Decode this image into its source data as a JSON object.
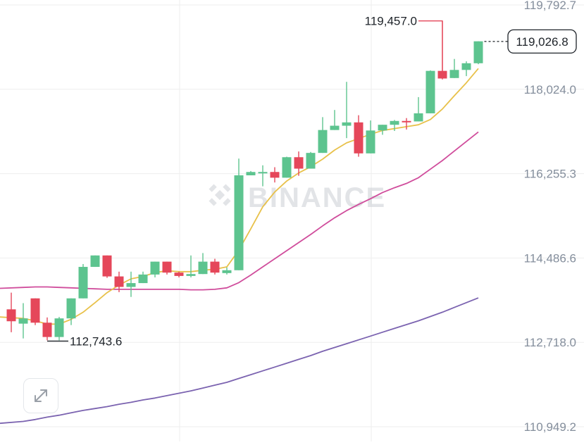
{
  "chart_data": {
    "type": "candlestick",
    "price_axis_labels": [
      "119,792.7",
      "118,024.0",
      "116,255.3",
      "114,486.6",
      "112,718.0",
      "110,949.2"
    ],
    "current_price_label": "119,026.8",
    "current_price": 119026.8,
    "high_label": "119,457.0",
    "high_value": 119457.0,
    "low_label": "112,743.6",
    "low_value": 112743.6,
    "ylim": [
      110949.2,
      119792.7
    ],
    "watermark": "BINANCE",
    "grid": true,
    "candles": [
      {
        "o": 113410,
        "h": 113760,
        "l": 112930,
        "c": 113160
      },
      {
        "o": 113110,
        "h": 113540,
        "l": 112800,
        "c": 113220
      },
      {
        "o": 113640,
        "h": 113640,
        "l": 113080,
        "c": 113130
      },
      {
        "o": 113130,
        "h": 113240,
        "l": 112760,
        "c": 112830
      },
      {
        "o": 112830,
        "h": 113250,
        "l": 112760,
        "c": 113220
      },
      {
        "o": 113220,
        "h": 113640,
        "l": 113080,
        "c": 113640
      },
      {
        "o": 113640,
        "h": 114360,
        "l": 113640,
        "c": 114300
      },
      {
        "o": 114300,
        "h": 114540,
        "l": 114300,
        "c": 114540
      },
      {
        "o": 114540,
        "h": 114540,
        "l": 114070,
        "c": 114100
      },
      {
        "o": 114100,
        "h": 114200,
        "l": 113770,
        "c": 113880
      },
      {
        "o": 113880,
        "h": 114200,
        "l": 113670,
        "c": 113960
      },
      {
        "o": 113960,
        "h": 114200,
        "l": 113960,
        "c": 114140
      },
      {
        "o": 114140,
        "h": 114410,
        "l": 114080,
        "c": 114410
      },
      {
        "o": 114410,
        "h": 114410,
        "l": 114140,
        "c": 114180
      },
      {
        "o": 114180,
        "h": 114200,
        "l": 114080,
        "c": 114110
      },
      {
        "o": 114110,
        "h": 114540,
        "l": 114080,
        "c": 114150
      },
      {
        "o": 114150,
        "h": 114590,
        "l": 114150,
        "c": 114410
      },
      {
        "o": 114410,
        "h": 114470,
        "l": 114140,
        "c": 114180
      },
      {
        "o": 114170,
        "h": 114290,
        "l": 114140,
        "c": 114230
      },
      {
        "o": 114230,
        "h": 116570,
        "l": 114230,
        "c": 116220
      },
      {
        "o": 116220,
        "h": 116310,
        "l": 116220,
        "c": 116290
      },
      {
        "o": 116290,
        "h": 116430,
        "l": 115990,
        "c": 116290
      },
      {
        "o": 116290,
        "h": 116390,
        "l": 116070,
        "c": 116170
      },
      {
        "o": 116170,
        "h": 116610,
        "l": 116170,
        "c": 116600
      },
      {
        "o": 116600,
        "h": 116720,
        "l": 116210,
        "c": 116360
      },
      {
        "o": 116360,
        "h": 116710,
        "l": 116360,
        "c": 116690
      },
      {
        "o": 116690,
        "h": 117440,
        "l": 116690,
        "c": 117170
      },
      {
        "o": 117170,
        "h": 117590,
        "l": 117170,
        "c": 117260
      },
      {
        "o": 117260,
        "h": 118180,
        "l": 117000,
        "c": 117330
      },
      {
        "o": 117330,
        "h": 117480,
        "l": 116610,
        "c": 116680
      },
      {
        "o": 116680,
        "h": 117370,
        "l": 116680,
        "c": 117160
      },
      {
        "o": 117160,
        "h": 117280,
        "l": 117070,
        "c": 117280
      },
      {
        "o": 117280,
        "h": 117380,
        "l": 117150,
        "c": 117360
      },
      {
        "o": 117360,
        "h": 117420,
        "l": 117180,
        "c": 117350
      },
      {
        "o": 117350,
        "h": 117860,
        "l": 117350,
        "c": 117520
      },
      {
        "o": 117520,
        "h": 118420,
        "l": 117520,
        "c": 118410
      },
      {
        "o": 118410,
        "h": 119450,
        "l": 118230,
        "c": 118250
      },
      {
        "o": 118260,
        "h": 118660,
        "l": 118260,
        "c": 118430
      },
      {
        "o": 118430,
        "h": 118610,
        "l": 118300,
        "c": 118570
      },
      {
        "o": 118570,
        "h": 119030,
        "l": 118550,
        "c": 119030
      }
    ],
    "ma_fast": [
      113250,
      113220,
      113170,
      113100,
      113100,
      113200,
      113350,
      113550,
      113760,
      113920,
      114050,
      114100,
      114180,
      114220,
      114200,
      114200,
      114230,
      114250,
      114300,
      114650,
      115100,
      115560,
      115870,
      116100,
      116270,
      116400,
      116560,
      116750,
      116900,
      116990,
      117080,
      117160,
      117200,
      117240,
      117280,
      117390,
      117610,
      117890,
      118160,
      118460
    ],
    "ma_mid": [
      113850,
      113870,
      113880,
      113880,
      113870,
      113860,
      113850,
      113840,
      113830,
      113830,
      113830,
      113830,
      113830,
      113830,
      113830,
      113820,
      113820,
      113830,
      113860,
      113970,
      114130,
      114300,
      114470,
      114640,
      114810,
      114980,
      115160,
      115330,
      115480,
      115610,
      115730,
      115860,
      115960,
      116050,
      116170,
      116350,
      116530,
      116730,
      116930,
      117130
    ],
    "ma_slow": [
      111020,
      111060,
      111100,
      111150,
      111190,
      111240,
      111290,
      111330,
      111370,
      111420,
      111460,
      111510,
      111550,
      111600,
      111650,
      111700,
      111760,
      111820,
      111880,
      111960,
      112040,
      112120,
      112200,
      112280,
      112360,
      112440,
      112530,
      112610,
      112690,
      112770,
      112850,
      112930,
      113010,
      113090,
      113170,
      113260,
      113350,
      113450,
      113550,
      113650
    ],
    "colors": {
      "up": "#5dc48f",
      "down": "#e5475a",
      "ma_fast": "#e8c14a",
      "ma_mid": "#d04d9c",
      "ma_slow": "#7b63b0",
      "grid": "#eeeeee",
      "axis_text": "#848e9c"
    }
  },
  "icons": {
    "expand": "expand-arrows-icon"
  }
}
